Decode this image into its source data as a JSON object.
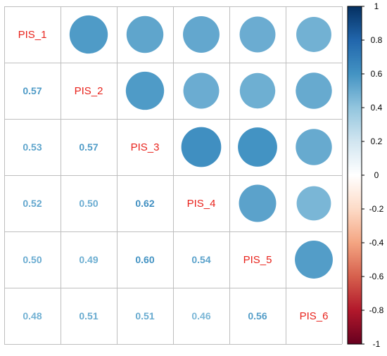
{
  "chart_data": {
    "type": "heatmap",
    "subtype": "correlation-matrix",
    "variables": [
      "PIS_1",
      "PIS_2",
      "PIS_3",
      "PIS_4",
      "PIS_5",
      "PIS_6"
    ],
    "matrix": [
      [
        1.0,
        0.57,
        0.53,
        0.52,
        0.5,
        0.48
      ],
      [
        0.57,
        1.0,
        0.57,
        0.5,
        0.49,
        0.51
      ],
      [
        0.53,
        0.57,
        1.0,
        0.62,
        0.6,
        0.51
      ],
      [
        0.52,
        0.5,
        0.62,
        1.0,
        0.54,
        0.46
      ],
      [
        0.5,
        0.49,
        0.6,
        0.54,
        1.0,
        0.56
      ],
      [
        0.48,
        0.51,
        0.51,
        0.46,
        0.56,
        1.0
      ]
    ],
    "lower_labels": [
      [
        "0.57"
      ],
      [
        "0.53",
        "0.57"
      ],
      [
        "0.52",
        "0.50",
        "0.62"
      ],
      [
        "0.50",
        "0.49",
        "0.60",
        "0.54"
      ],
      [
        "0.48",
        "0.51",
        "0.51",
        "0.46",
        "0.56"
      ]
    ],
    "upper_method": "circle",
    "lower_method": "number",
    "diagonal": "variable-names",
    "grid": true,
    "legend": {
      "position": "right",
      "range": [
        -1,
        1
      ],
      "ticks": [
        "1",
        "0.8",
        "0.6",
        "0.4",
        "0.2",
        "0",
        "-0.2",
        "-0.4",
        "-0.6",
        "-0.8",
        "-1"
      ]
    },
    "colors": {
      "negative_end": "#67001f",
      "mid": "#ffffff",
      "positive_end": "#053061",
      "diagonal_label": "#e8231c",
      "grid": "#bebebe"
    }
  }
}
